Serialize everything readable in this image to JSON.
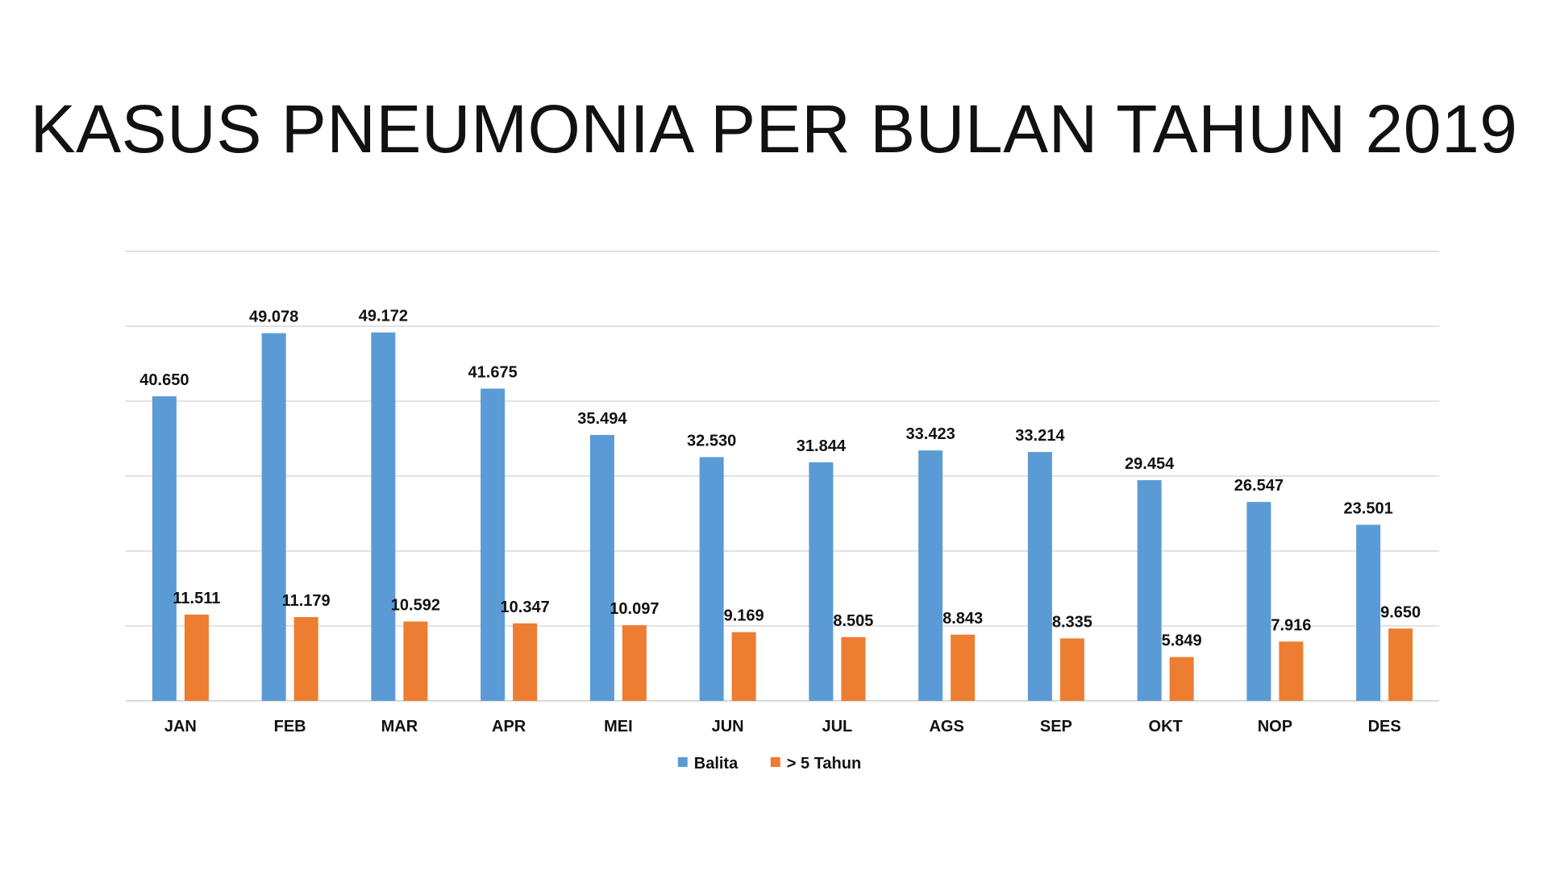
{
  "chart_data": {
    "type": "bar",
    "title": "KASUS PNEUMONIA PER BULAN TAHUN 2019",
    "categories": [
      "JAN",
      "FEB",
      "MAR",
      "APR",
      "MEI",
      "JUN",
      "JUL",
      "AGS",
      "SEP",
      "OKT",
      "NOP",
      "DES"
    ],
    "series": [
      {
        "name": "Balita",
        "color": "#5B9BD5",
        "values": [
          40650,
          49078,
          49172,
          41675,
          35494,
          32530,
          31844,
          33423,
          33214,
          29454,
          26547,
          23501
        ],
        "labels": [
          "40.650",
          "49.078",
          "49.172",
          "41.675",
          "35.494",
          "32.530",
          "31.844",
          "33.423",
          "33.214",
          "29.454",
          "26.547",
          "23.501"
        ]
      },
      {
        "name": "> 5 Tahun",
        "color": "#ED7D31",
        "values": [
          11511,
          11179,
          10592,
          10347,
          10097,
          9169,
          8505,
          8843,
          8335,
          5849,
          7916,
          9650
        ],
        "labels": [
          "11.511",
          "11.179",
          "10.592",
          "10.347",
          "10.097",
          "9.169",
          "8.505",
          "8.843",
          "8.335",
          "5.849",
          "7.916",
          "9.650"
        ]
      }
    ],
    "ylim": [
      0,
      60000
    ],
    "y_gridline_step": 10000,
    "grid": true,
    "y_tick_labels_shown": false,
    "legend_position": "bottom",
    "gridline_color": "#D9D9D9",
    "xlabel": "",
    "ylabel": ""
  }
}
